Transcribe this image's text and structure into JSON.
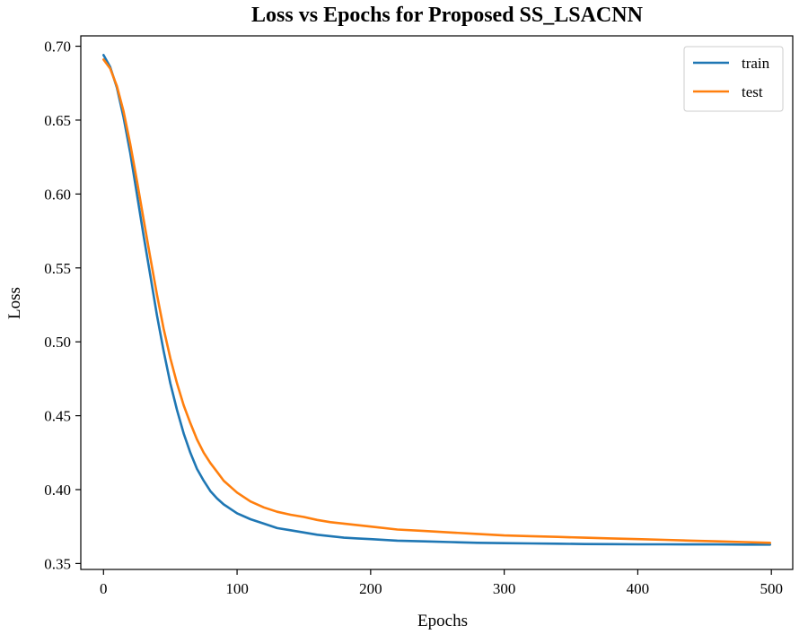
{
  "chart_data": {
    "type": "line",
    "title": "Loss vs Epochs for Proposed SS_LSACNN",
    "xlabel": "Epochs",
    "ylabel": "Loss",
    "xlim": [
      -17,
      516
    ],
    "ylim": [
      0.346,
      0.707
    ],
    "x_ticks": [
      0,
      100,
      200,
      300,
      400,
      500
    ],
    "x_tick_labels": [
      "0",
      "100",
      "200",
      "300",
      "400",
      "500"
    ],
    "y_ticks": [
      0.35,
      0.4,
      0.45,
      0.5,
      0.55,
      0.6,
      0.65,
      0.7
    ],
    "y_tick_labels": [
      "0.35",
      "0.40",
      "0.45",
      "0.50",
      "0.55",
      "0.60",
      "0.65",
      "0.70"
    ],
    "grid": false,
    "legend_position": "top-right",
    "series": [
      {
        "name": "train",
        "color": "#1f77b4",
        "x": [
          0,
          5,
          10,
          15,
          20,
          25,
          30,
          35,
          40,
          45,
          50,
          55,
          60,
          65,
          70,
          75,
          80,
          85,
          90,
          95,
          100,
          110,
          120,
          130,
          140,
          150,
          160,
          170,
          180,
          190,
          200,
          220,
          240,
          260,
          280,
          300,
          320,
          340,
          360,
          380,
          400,
          420,
          440,
          460,
          480,
          499
        ],
        "values": [
          0.694,
          0.686,
          0.672,
          0.652,
          0.628,
          0.6,
          0.572,
          0.545,
          0.518,
          0.494,
          0.472,
          0.454,
          0.438,
          0.425,
          0.414,
          0.406,
          0.399,
          0.394,
          0.39,
          0.387,
          0.384,
          0.38,
          0.377,
          0.374,
          0.3725,
          0.371,
          0.3695,
          0.3685,
          0.3675,
          0.367,
          0.3665,
          0.3655,
          0.365,
          0.3645,
          0.364,
          0.3638,
          0.3636,
          0.3634,
          0.3632,
          0.3631,
          0.363,
          0.363,
          0.3629,
          0.3629,
          0.3628,
          0.3628
        ]
      },
      {
        "name": "test",
        "color": "#ff7f0e",
        "x": [
          0,
          5,
          10,
          15,
          20,
          25,
          30,
          35,
          40,
          45,
          50,
          55,
          60,
          65,
          70,
          75,
          80,
          85,
          90,
          95,
          100,
          110,
          120,
          130,
          140,
          150,
          160,
          170,
          180,
          190,
          200,
          220,
          240,
          260,
          280,
          300,
          320,
          340,
          360,
          380,
          400,
          420,
          440,
          460,
          480,
          499
        ],
        "values": [
          0.691,
          0.685,
          0.673,
          0.656,
          0.634,
          0.609,
          0.583,
          0.557,
          0.532,
          0.509,
          0.489,
          0.472,
          0.457,
          0.445,
          0.434,
          0.425,
          0.418,
          0.412,
          0.406,
          0.402,
          0.398,
          0.392,
          0.388,
          0.385,
          0.383,
          0.3815,
          0.3795,
          0.378,
          0.377,
          0.376,
          0.375,
          0.373,
          0.372,
          0.371,
          0.37,
          0.369,
          0.3685,
          0.368,
          0.3675,
          0.367,
          0.3665,
          0.366,
          0.3655,
          0.365,
          0.3645,
          0.364
        ]
      }
    ]
  }
}
